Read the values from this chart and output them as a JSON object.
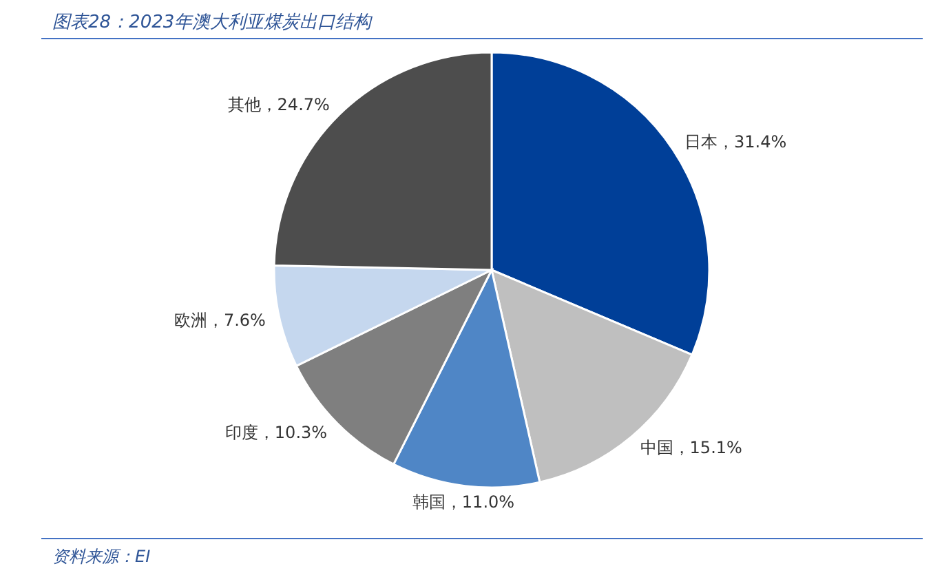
{
  "chart_data": {
    "type": "pie",
    "title": "图表28：2023年澳大利亚煤炭出口结构",
    "categories": [
      "日本",
      "中国",
      "韩国",
      "印度",
      "欧洲",
      "其他"
    ],
    "values": [
      31.4,
      15.1,
      11.0,
      10.3,
      7.6,
      24.7
    ],
    "colors": [
      "#003f98",
      "#bfbfbf",
      "#4f86c6",
      "#7f7f7f",
      "#c5d7ee",
      "#4d4d4d"
    ],
    "value_labels": [
      "，31.4%",
      "，15.1%",
      "，11.0%",
      "，10.3%",
      "，7.6%",
      "，24.7%"
    ],
    "annotations": [
      "资料来源：EI"
    ]
  }
}
